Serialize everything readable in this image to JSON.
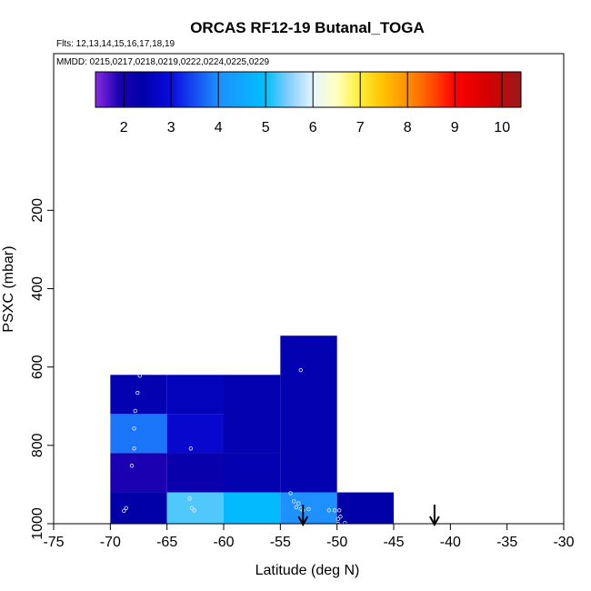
{
  "chart_data": {
    "type": "heatmap",
    "title": "ORCAS RF12-19 Butanal_TOGA",
    "flights_label": "Flts: 12,13,14,15,16,17,18,19",
    "mmdd_label": "MMDD: 0215,0217,0218,0219,0222,0224,0225,0229",
    "xlabel": "Latitude (deg N)",
    "ylabel": "PSXC (mbar)",
    "xlim": [
      -75,
      -30
    ],
    "ylim": [
      1000,
      -200
    ],
    "x_ticks": [
      -75,
      -70,
      -65,
      -60,
      -55,
      -50,
      -45,
      -40,
      -35,
      -30
    ],
    "y_ticks": [
      200,
      400,
      600,
      800,
      1000
    ],
    "colorbar": {
      "range": [
        1.4,
        10.4
      ],
      "ticks": [
        2,
        3,
        4,
        5,
        6,
        7,
        8,
        9,
        10
      ],
      "stops": [
        {
          "v": 1.4,
          "c": "#8a2be2"
        },
        {
          "v": 1.9,
          "c": "#1a00b0"
        },
        {
          "v": 2.4,
          "c": "#0000a8"
        },
        {
          "v": 3.0,
          "c": "#0a0ae0"
        },
        {
          "v": 4.0,
          "c": "#1e90ff"
        },
        {
          "v": 5.0,
          "c": "#00bfff"
        },
        {
          "v": 5.5,
          "c": "#87cefa"
        },
        {
          "v": 6.0,
          "c": "#e6f5ff"
        },
        {
          "v": 6.5,
          "c": "#ffffc0"
        },
        {
          "v": 7.0,
          "c": "#ffee33"
        },
        {
          "v": 7.5,
          "c": "#ffc000"
        },
        {
          "v": 8.0,
          "c": "#ff9000"
        },
        {
          "v": 8.5,
          "c": "#ff5000"
        },
        {
          "v": 9.0,
          "c": "#ff0000"
        },
        {
          "v": 9.7,
          "c": "#d40000"
        },
        {
          "v": 10.4,
          "c": "#9a1a1a"
        }
      ]
    },
    "cells": [
      {
        "x0": -70,
        "x1": -65,
        "p0": 620,
        "p1": 720,
        "value": 2.5
      },
      {
        "x0": -65,
        "x1": -60,
        "p0": 620,
        "p1": 720,
        "value": 2.6
      },
      {
        "x0": -60,
        "x1": -55,
        "p0": 620,
        "p1": 820,
        "value": 2.5
      },
      {
        "x0": -55,
        "x1": -50,
        "p0": 520,
        "p1": 920,
        "value": 2.5
      },
      {
        "x0": -70,
        "x1": -65,
        "p0": 720,
        "p1": 820,
        "value": 3.8
      },
      {
        "x0": -65,
        "x1": -60,
        "p0": 720,
        "p1": 820,
        "value": 2.8
      },
      {
        "x0": -70,
        "x1": -65,
        "p0": 820,
        "p1": 920,
        "value": 1.9
      },
      {
        "x0": -65,
        "x1": -60,
        "p0": 820,
        "p1": 920,
        "value": 2.2
      },
      {
        "x0": -60,
        "x1": -55,
        "p0": 820,
        "p1": 920,
        "value": 2.5
      },
      {
        "x0": -70,
        "x1": -65,
        "p0": 920,
        "p1": 1020,
        "value": 2.4
      },
      {
        "x0": -65,
        "x1": -60,
        "p0": 920,
        "p1": 1020,
        "value": 5.3
      },
      {
        "x0": -60,
        "x1": -55,
        "p0": 920,
        "p1": 1020,
        "value": 4.9
      },
      {
        "x0": -55,
        "x1": -50,
        "p0": 920,
        "p1": 1020,
        "value": 4.0
      },
      {
        "x0": -50,
        "x1": -45,
        "p0": 920,
        "p1": 1020,
        "value": 2.4
      }
    ],
    "samples": [
      [
        -67.4,
        622
      ],
      [
        -67.6,
        666
      ],
      [
        -67.8,
        712
      ],
      [
        -67.9,
        757
      ],
      [
        -67.9,
        808
      ],
      [
        -68.1,
        852
      ],
      [
        -68.6,
        960
      ],
      [
        -68.8,
        967
      ],
      [
        -62.9,
        808
      ],
      [
        -63.0,
        936
      ],
      [
        -62.8,
        960
      ],
      [
        -62.6,
        966
      ],
      [
        -53.2,
        608
      ],
      [
        -54.1,
        922
      ],
      [
        -53.8,
        943
      ],
      [
        -53.4,
        948
      ],
      [
        -53.6,
        958
      ],
      [
        -53.2,
        962
      ],
      [
        -53.0,
        966
      ],
      [
        -52.5,
        963
      ],
      [
        -50.7,
        966
      ],
      [
        -50.2,
        966
      ],
      [
        -49.8,
        966
      ],
      [
        -49.7,
        982
      ],
      [
        -49.9,
        988
      ],
      [
        -49.3,
        998
      ],
      [
        -49.9,
        1000
      ]
    ],
    "arrows": [
      -53,
      -41.4
    ]
  }
}
